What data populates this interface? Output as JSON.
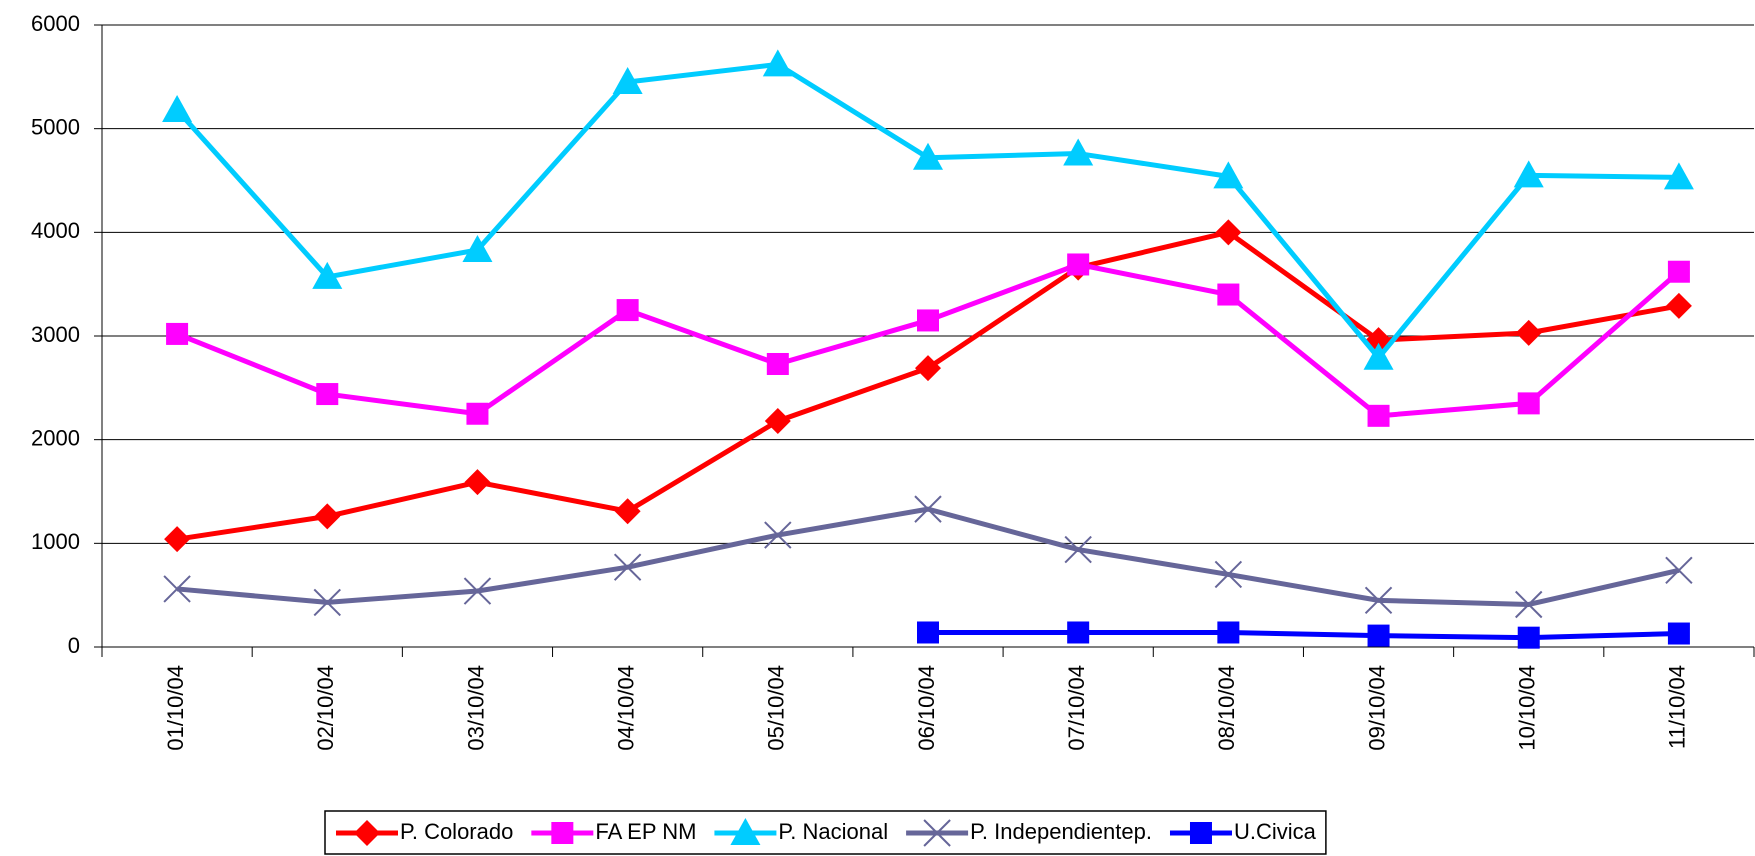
{
  "chart_data": {
    "type": "line",
    "categories": [
      "01/10/04",
      "02/10/04",
      "03/10/04",
      "04/10/04",
      "05/10/04",
      "06/10/04",
      "07/10/04",
      "08/10/04",
      "09/10/04",
      "10/10/04",
      "11/10/04"
    ],
    "series": [
      {
        "name": "P. Colorado",
        "color": "#ff0000",
        "marker": "diamond",
        "values": [
          1040,
          1260,
          1590,
          1310,
          2180,
          2690,
          3660,
          4000,
          2960,
          3030,
          3290
        ]
      },
      {
        "name": "FA EP NM",
        "color": "#ff00ff",
        "marker": "square",
        "values": [
          3020,
          2440,
          2250,
          3250,
          2730,
          3150,
          3690,
          3400,
          2230,
          2350,
          3620
        ]
      },
      {
        "name": "P. Nacional",
        "color": "#00ccff",
        "marker": "triangle",
        "values": [
          5180,
          3570,
          3830,
          5450,
          5620,
          4720,
          4760,
          4540,
          2790,
          4550,
          4530
        ]
      },
      {
        "name": "P. Independientep.",
        "color": "#666699",
        "marker": "x",
        "values": [
          560,
          430,
          540,
          770,
          1080,
          1330,
          940,
          700,
          450,
          410,
          740
        ]
      },
      {
        "name": "U.Civica",
        "color": "#0000ff",
        "marker": "square",
        "values": [
          null,
          null,
          null,
          null,
          null,
          140,
          140,
          140,
          110,
          90,
          130
        ]
      }
    ],
    "ylim": [
      0,
      6000
    ],
    "yticks": [
      0,
      1000,
      2000,
      3000,
      4000,
      5000,
      6000
    ],
    "grid": true,
    "legend": "bottom"
  }
}
